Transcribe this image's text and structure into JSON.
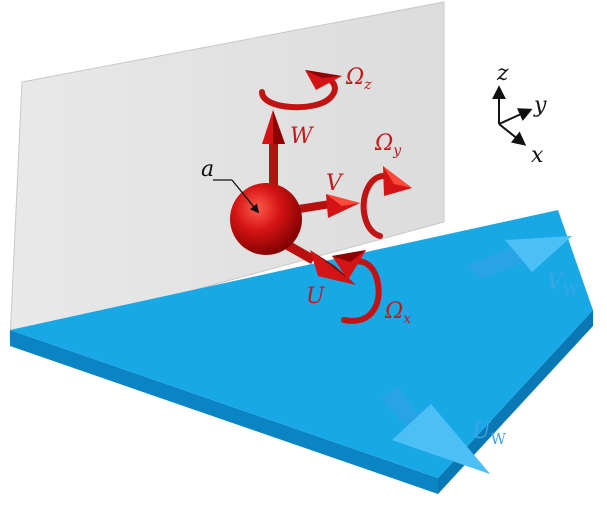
{
  "colors": {
    "wall": "#e0e0e0",
    "wall_edge": "#bdbdbd",
    "floor_top": "#19a8e6",
    "floor_side": "#0b84c4",
    "particle": "#d41414",
    "particle_dark": "#8c0000",
    "particle_text": "#c21a1a",
    "wall_velocity": "#27a3e6",
    "wall_velocity_text": "#3aa6e6",
    "axes": "#111111"
  },
  "labels": {
    "radius": "a",
    "velocity_w": "W",
    "velocity_v": "V",
    "velocity_u": "U",
    "omega_symbol": "Ω",
    "omega_z_sub": "z",
    "omega_y_sub": "y",
    "omega_x_sub": "x",
    "wall_u": "U",
    "wall_u_sub": "W",
    "wall_v": "V",
    "wall_v_sub": "W",
    "axis_z": "z",
    "axis_y": "y",
    "axis_x": "x"
  },
  "icons": {
    "sphere": "sphere-icon",
    "arrows": "arrow-icon",
    "rotation": "curved-arrow-icon",
    "axes": "coordinate-axes-icon"
  }
}
